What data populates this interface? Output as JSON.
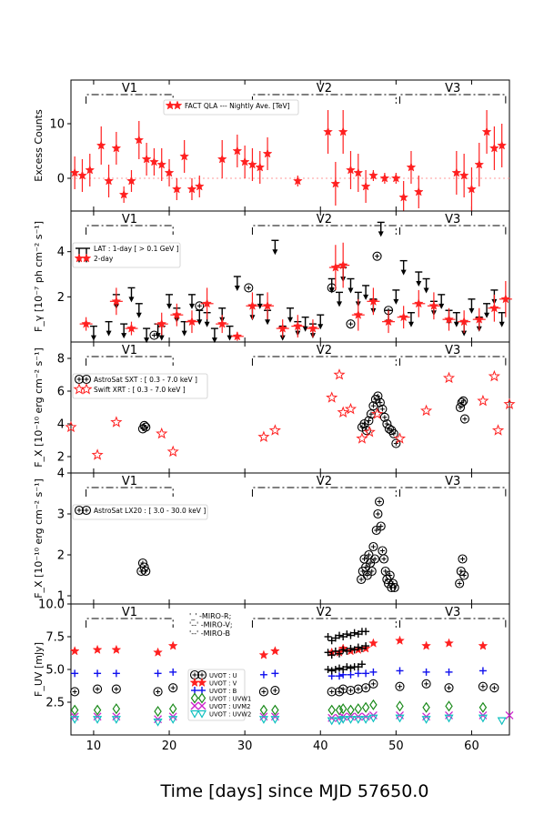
{
  "figure": {
    "xlabel": "Time [days] since MJD 57650.0",
    "x_ticks": [
      10,
      20,
      30,
      40,
      50,
      60
    ],
    "xlim": [
      7,
      65
    ],
    "periods": [
      {
        "label": "V1",
        "start": 9,
        "end": 20.5
      },
      {
        "label": "V2",
        "start": 31,
        "end": 50
      },
      {
        "label": "V3",
        "start": 50.5,
        "end": 64.5
      }
    ]
  },
  "chart_data": [
    {
      "type": "scatter",
      "panel": "fact",
      "ylabel": "Excess Counts",
      "ylim": [
        -6,
        18
      ],
      "y_ticks": [
        0,
        10
      ],
      "legend": [
        "FACT QLA --- Nightly Ave. [TeV]"
      ],
      "series": [
        {
          "name": "FACT QLA --- Nightly Ave. [TeV]",
          "marker": "star",
          "color": "#ff2020",
          "x": [
            7.5,
            8.5,
            9.5,
            11,
            12,
            13,
            14,
            15,
            16,
            17,
            18,
            19,
            20,
            21,
            22,
            23,
            24,
            27,
            29,
            30,
            31,
            32,
            33,
            37,
            41,
            42,
            43,
            44,
            45,
            46,
            47,
            48.5,
            50,
            51,
            52,
            53,
            58,
            59,
            60,
            61,
            62,
            63,
            64
          ],
          "y": [
            1,
            0.5,
            1.5,
            6,
            -0.5,
            5.5,
            -3,
            -0.5,
            7,
            3.5,
            3,
            2.5,
            1,
            -2,
            4,
            -2,
            -1.5,
            3.5,
            5,
            3,
            2.5,
            2,
            4.5,
            -0.5,
            8.5,
            -1,
            8.5,
            1.5,
            1,
            -1.5,
            0.5,
            0,
            0,
            -3.5,
            2,
            -2.5,
            1,
            0.5,
            -2,
            2.5,
            8.5,
            5.5,
            6
          ],
          "err": [
            3,
            3,
            3,
            3.5,
            3,
            3,
            1.5,
            2,
            3.5,
            3,
            2.5,
            3,
            2.5,
            2,
            3,
            2,
            2,
            3.5,
            3,
            3,
            3,
            3,
            3,
            1,
            4,
            4,
            4,
            3.5,
            3.5,
            3,
            1,
            1,
            1,
            3,
            3,
            3,
            4,
            4,
            4,
            4,
            4,
            4,
            4
          ]
        }
      ]
    },
    {
      "type": "scatter",
      "panel": "lat",
      "ylabel": "F_γ [10⁻⁷ ph cm⁻² s⁻¹]",
      "ylim": [
        0,
        5.8
      ],
      "y_ticks": [
        2,
        4
      ],
      "legend": [
        "LAT : 1-day [ > 0.1 GeV ]",
        "2-day"
      ],
      "series": [
        {
          "name": "LAT : 1-day [ > 0.1 GeV ]",
          "marker": "upper-limit-arrow",
          "color": "#000000",
          "x": [
            10,
            12,
            13,
            14,
            15,
            16,
            17,
            18.5,
            19,
            20,
            21,
            22,
            23,
            24,
            25,
            26,
            27,
            28,
            29,
            31,
            32,
            33,
            34,
            35,
            36,
            37,
            38,
            39,
            40,
            41.5,
            42.5,
            43,
            44,
            45,
            46,
            47,
            48,
            49,
            50,
            51,
            52,
            53,
            54,
            55,
            56,
            57,
            58,
            59,
            60,
            61,
            62,
            63,
            64
          ],
          "y": [
            0.7,
            0.9,
            2.1,
            0.8,
            2.4,
            1.7,
            0.6,
            0.8,
            0.7,
            2.1,
            1.5,
            0.9,
            2.1,
            1.4,
            1.3,
            0.6,
            1.5,
            0.7,
            2.9,
            1.6,
            2.1,
            1.4,
            4.5,
            0.7,
            1.5,
            0.9,
            1.1,
            0.8,
            1.2,
            2.8,
            2.2,
            3.3,
            2.8,
            2.2,
            2.5,
            1.9,
            5.3,
            1.4,
            2.3,
            3.6,
            1.3,
            3.1,
            2.8,
            1.8,
            2.1,
            1.4,
            1.3,
            0.9,
            1.9,
            1.1,
            1.7,
            2.3,
            1.3
          ]
        },
        {
          "name": "LAT : 1-day [ > 0.1 GeV ]",
          "marker": "circle-detection",
          "color": "#000000",
          "x": [
            18,
            24,
            30.5,
            41.5,
            44,
            47.5,
            49
          ],
          "y": [
            0.3,
            1.6,
            2.4,
            2.4,
            0.8,
            3.8,
            1.4
          ]
        },
        {
          "name": "2-day",
          "marker": "star",
          "color": "#ff2020",
          "x": [
            9,
            13,
            15,
            19,
            21,
            23,
            25,
            27,
            29,
            31,
            33,
            35,
            37,
            39,
            42,
            43,
            45,
            47,
            49,
            51,
            53,
            55,
            57,
            59,
            61,
            63,
            64.5
          ],
          "y": [
            0.8,
            1.8,
            0.6,
            0.8,
            1.2,
            0.9,
            1.7,
            0.8,
            0.25,
            1.6,
            1.6,
            0.6,
            0.7,
            0.6,
            3.3,
            3.4,
            1.2,
            1.8,
            0.9,
            1.1,
            1.7,
            1.6,
            1.0,
            0.9,
            1.0,
            1.5,
            1.9
          ],
          "err": [
            0.3,
            0.6,
            0.3,
            0.5,
            0.5,
            0.5,
            0.7,
            0.4,
            0.2,
            0.6,
            0.6,
            0.4,
            0.5,
            0.4,
            1.0,
            1.0,
            0.7,
            0.6,
            0.5,
            0.5,
            0.6,
            0.6,
            0.5,
            0.5,
            0.5,
            0.6,
            0.8
          ]
        }
      ]
    },
    {
      "type": "scatter",
      "panel": "xray",
      "ylabel": "F_X [10⁻¹⁰ erg cm⁻² s⁻¹]",
      "ylim": [
        1,
        9
      ],
      "y_ticks": [
        2,
        4,
        6,
        8
      ],
      "legend": [
        "AstroSat SXT : [ 0.3 - 7.0 keV ]",
        "Swift XRT : [ 0.3 - 7.0 keV ]"
      ],
      "series": [
        {
          "name": "AstroSat SXT : [ 0.3 - 7.0 keV ]",
          "marker": "circle-detection",
          "color": "#000000",
          "x": [
            16.5,
            16.7,
            16.9,
            45.5,
            45.8,
            46.1,
            46.4,
            46.7,
            47,
            47.3,
            47.6,
            47.9,
            48.2,
            48.5,
            48.8,
            49.1,
            49.4,
            49.7,
            50,
            58.5,
            58.7,
            58.9,
            59.1
          ],
          "y": [
            3.7,
            3.9,
            3.8,
            3.8,
            4.0,
            3.6,
            4.2,
            4.6,
            5.1,
            5.5,
            5.7,
            5.3,
            4.9,
            4.4,
            4.0,
            3.7,
            3.6,
            3.4,
            2.8,
            5.0,
            5.3,
            5.4,
            4.3
          ]
        },
        {
          "name": "Swift XRT : [ 0.3 - 7.0 keV ]",
          "marker": "star-open",
          "color": "#ff2020",
          "x": [
            7,
            10.5,
            13,
            19,
            20.5,
            32.5,
            34,
            41.5,
            42.5,
            43,
            44,
            45.5,
            46.5,
            47.5,
            50.5,
            54,
            57,
            61.5,
            63,
            63.5,
            65
          ],
          "y": [
            3.8,
            2.1,
            4.1,
            3.4,
            2.3,
            3.2,
            3.6,
            5.6,
            7.0,
            4.7,
            4.9,
            3.1,
            3.5,
            4.6,
            3.1,
            4.8,
            6.8,
            5.4,
            6.9,
            3.6,
            5.2
          ]
        }
      ]
    },
    {
      "type": "scatter",
      "panel": "lx20",
      "ylabel": "F_X [10⁻¹⁰ erg cm⁻² s⁻¹]",
      "ylim": [
        0.8,
        4
      ],
      "y_ticks": [
        1,
        2,
        3,
        4
      ],
      "legend": [
        "AstroSat LX20 : [ 3.0 - 30.0 keV ]"
      ],
      "series": [
        {
          "name": "AstroSat LX20 : [ 3.0 - 30.0 keV ]",
          "marker": "circle-detection",
          "color": "#000000",
          "x": [
            16.3,
            16.5,
            16.7,
            16.9,
            45.4,
            45.6,
            45.8,
            46.0,
            46.2,
            46.4,
            46.6,
            46.8,
            47.0,
            47.2,
            47.4,
            47.6,
            47.8,
            48.0,
            48.2,
            48.4,
            48.6,
            48.8,
            49.0,
            49.2,
            49.4,
            49.6,
            49.8,
            58.4,
            58.6,
            58.8,
            59.0
          ],
          "y": [
            1.6,
            1.8,
            1.7,
            1.6,
            1.4,
            1.6,
            1.9,
            1.7,
            1.5,
            2.0,
            1.8,
            1.6,
            2.2,
            1.9,
            2.6,
            3.0,
            3.3,
            2.7,
            2.1,
            1.9,
            1.6,
            1.4,
            1.3,
            1.5,
            1.2,
            1.3,
            1.2,
            1.3,
            1.6,
            1.9,
            1.5
          ]
        }
      ]
    },
    {
      "type": "scatter",
      "panel": "uvot",
      "ylabel": "F_UV [mJy]",
      "ylim": [
        0,
        10
      ],
      "y_ticks": [
        2.5,
        5.0,
        7.5,
        10.0
      ],
      "y_tick_labels": [
        "2.5",
        "5.0",
        "7.5",
        "10.0"
      ],
      "miro_notes": [
        "'_' -MIRO-R;",
        "'--' -MIRO-V;",
        "'--' -MIRO-B"
      ],
      "legend": [
        "UVOT : U",
        "UVOT : V",
        "UVOT : B",
        "UVOT : UVW1",
        "UVOT : UVM2",
        "UVOT : UVW2"
      ],
      "series": [
        {
          "name": "UVOT : U",
          "marker": "circle-detection",
          "color": "#000000",
          "x": [
            7.5,
            10.5,
            13,
            18.5,
            20.5,
            32.5,
            34,
            41.5,
            42.5,
            43,
            44,
            45,
            46,
            47,
            50.5,
            54,
            57,
            61.5,
            63
          ],
          "y": [
            3.3,
            3.5,
            3.5,
            3.3,
            3.6,
            3.3,
            3.4,
            3.3,
            3.3,
            3.5,
            3.4,
            3.5,
            3.6,
            3.9,
            3.7,
            3.9,
            3.6,
            3.7,
            3.6
          ]
        },
        {
          "name": "UVOT : V",
          "marker": "star",
          "color": "#ff2020",
          "x": [
            7.5,
            10.5,
            13,
            18.5,
            20.5,
            32.5,
            34,
            41.5,
            42.5,
            43,
            44,
            45,
            46,
            47,
            50.5,
            54,
            57,
            61.5
          ],
          "y": [
            6.4,
            6.5,
            6.5,
            6.3,
            6.8,
            6.1,
            6.4,
            6.3,
            6.3,
            6.6,
            6.4,
            6.5,
            6.6,
            7.0,
            7.2,
            6.8,
            7.0,
            6.8
          ]
        },
        {
          "name": "UVOT : B",
          "marker": "plus",
          "color": "#1010ee",
          "x": [
            7.5,
            10.5,
            13,
            18.5,
            20.5,
            32.5,
            34,
            41.5,
            42.5,
            43,
            44,
            45,
            46,
            47,
            50.5,
            54,
            57,
            61.5
          ],
          "y": [
            4.7,
            4.7,
            4.7,
            4.7,
            4.8,
            4.6,
            4.7,
            4.5,
            4.5,
            4.6,
            4.6,
            4.7,
            4.7,
            4.8,
            4.9,
            4.8,
            4.8,
            4.9
          ]
        },
        {
          "name": "UVOT : UVW1",
          "marker": "diamond",
          "color": "#1a8a1a",
          "x": [
            7.5,
            10.5,
            13,
            18.5,
            20.5,
            32.5,
            34,
            41.5,
            42.5,
            43,
            44,
            45,
            46,
            47,
            50.5,
            54,
            57,
            61.5
          ],
          "y": [
            1.9,
            1.9,
            2.0,
            1.8,
            2.0,
            1.9,
            1.9,
            1.9,
            1.9,
            2.0,
            1.9,
            2.0,
            2.1,
            2.3,
            2.2,
            2.1,
            2.2,
            2.1
          ]
        },
        {
          "name": "UVOT : UVM2",
          "marker": "x",
          "color": "#cc22cc",
          "x": [
            7.5,
            10.5,
            13,
            18.5,
            20.5,
            32.5,
            34,
            41.5,
            42.5,
            43,
            44,
            45,
            46,
            47,
            50.5,
            54,
            57,
            61.5,
            65
          ],
          "y": [
            1.4,
            1.4,
            1.4,
            1.2,
            1.4,
            1.4,
            1.4,
            1.3,
            1.3,
            1.4,
            1.4,
            1.4,
            1.4,
            1.5,
            1.5,
            1.4,
            1.5,
            1.5,
            1.5
          ]
        },
        {
          "name": "UVOT : UVW2",
          "marker": "triangle-down",
          "color": "#10c0c0",
          "x": [
            7.5,
            10.5,
            13,
            18.5,
            20.5,
            32.5,
            34,
            41.5,
            42.5,
            43,
            44,
            45,
            46,
            47,
            50.5,
            54,
            57,
            61.5,
            64
          ],
          "y": [
            1.2,
            1.2,
            1.2,
            1.0,
            1.2,
            1.2,
            1.2,
            1.1,
            1.1,
            1.2,
            1.2,
            1.2,
            1.2,
            1.3,
            1.3,
            1.2,
            1.3,
            1.3,
            1.1
          ]
        },
        {
          "name": "MIRO",
          "marker": "plus",
          "color": "#000000",
          "x": [
            41,
            41.5,
            42,
            42.5,
            43,
            43.5,
            44,
            44.5,
            45,
            45.5,
            46,
            41,
            41.5,
            42,
            42.5,
            43,
            43.5,
            44,
            44.5,
            45,
            45.5,
            46,
            41,
            41.5,
            42,
            42.5,
            43,
            43.5,
            44,
            44.5,
            45,
            45.5
          ],
          "y": [
            7.5,
            7.2,
            7.4,
            7.6,
            7.5,
            7.7,
            7.6,
            7.8,
            7.7,
            7.9,
            7.9,
            6.3,
            6.1,
            6.4,
            6.2,
            6.5,
            6.4,
            6.6,
            6.5,
            6.7,
            6.6,
            6.8,
            5.0,
            4.9,
            5.0,
            5.1,
            5.0,
            5.2,
            5.1,
            5.2,
            5.2,
            5.4
          ]
        }
      ]
    }
  ]
}
